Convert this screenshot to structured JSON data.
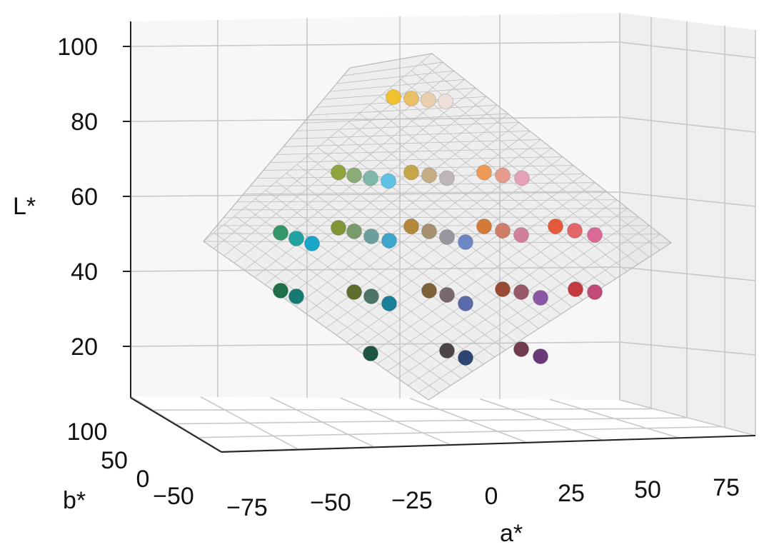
{
  "chart_data": {
    "type": "scatter",
    "title": "",
    "xlabel": "a*",
    "ylabel": "b*",
    "zlabel": "L*",
    "x_ticks": [
      "−75",
      "−50",
      "−25",
      "0",
      "25",
      "50",
      "75"
    ],
    "y_ticks": [
      "−50",
      "0",
      "50",
      "100"
    ],
    "z_ticks": [
      "20",
      "40",
      "60",
      "80",
      "100"
    ],
    "zlim": [
      0,
      100
    ],
    "grid": true,
    "surface": "gamut mesh (translucent grey)",
    "points": [
      {
        "L": 88,
        "color": "#f2c12e"
      },
      {
        "L": 88,
        "color": "#eac067"
      },
      {
        "L": 88,
        "color": "#e9cfae"
      },
      {
        "L": 88,
        "color": "#ece0d8"
      },
      {
        "L": 66,
        "color": "#8fa33e"
      },
      {
        "L": 66,
        "color": "#89ad75"
      },
      {
        "L": 66,
        "color": "#7fb8a8"
      },
      {
        "L": 66,
        "color": "#5ec3e4"
      },
      {
        "L": 66,
        "color": "#c7a54a"
      },
      {
        "L": 66,
        "color": "#c6ac85"
      },
      {
        "L": 66,
        "color": "#bdb5b8"
      },
      {
        "L": 66,
        "color": "#ee9a56"
      },
      {
        "L": 66,
        "color": "#e59c8c"
      },
      {
        "L": 66,
        "color": "#e3a2b9"
      },
      {
        "L": 52,
        "color": "#32966a"
      },
      {
        "L": 52,
        "color": "#22a2a0"
      },
      {
        "L": 52,
        "color": "#1aa6c8"
      },
      {
        "L": 52,
        "color": "#7f9638"
      },
      {
        "L": 52,
        "color": "#7b9a6b"
      },
      {
        "L": 52,
        "color": "#6d9e9e"
      },
      {
        "L": 52,
        "color": "#3ea6c8"
      },
      {
        "L": 52,
        "color": "#b2893a"
      },
      {
        "L": 52,
        "color": "#a69070"
      },
      {
        "L": 52,
        "color": "#9a969e"
      },
      {
        "L": 52,
        "color": "#6d86c4"
      },
      {
        "L": 52,
        "color": "#d47a38"
      },
      {
        "L": 52,
        "color": "#cf7c68"
      },
      {
        "L": 52,
        "color": "#d0809c"
      },
      {
        "L": 52,
        "color": "#e55a3c"
      },
      {
        "L": 52,
        "color": "#e2666a"
      },
      {
        "L": 52,
        "color": "#d96a98"
      },
      {
        "L": 36,
        "color": "#1f7048"
      },
      {
        "L": 36,
        "color": "#177a70"
      },
      {
        "L": 36,
        "color": "#5e6c2e"
      },
      {
        "L": 36,
        "color": "#4c7566"
      },
      {
        "L": 36,
        "color": "#1a7f98"
      },
      {
        "L": 36,
        "color": "#7e6238"
      },
      {
        "L": 36,
        "color": "#786a6c"
      },
      {
        "L": 36,
        "color": "#5a6aaa"
      },
      {
        "L": 36,
        "color": "#994b36"
      },
      {
        "L": 36,
        "color": "#995868"
      },
      {
        "L": 36,
        "color": "#8a58a4"
      },
      {
        "L": 36,
        "color": "#c23a3e"
      },
      {
        "L": 36,
        "color": "#c24a78"
      },
      {
        "L": 20,
        "color": "#1e5444"
      },
      {
        "L": 20,
        "color": "#4c4448"
      },
      {
        "L": 20,
        "color": "#2e4574"
      },
      {
        "L": 20,
        "color": "#733c4e"
      },
      {
        "L": 20,
        "color": "#6a3a78"
      }
    ]
  }
}
